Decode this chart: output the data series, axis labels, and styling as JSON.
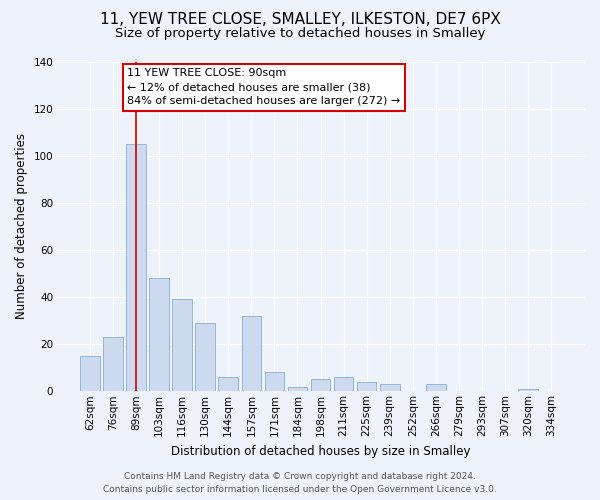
{
  "title": "11, YEW TREE CLOSE, SMALLEY, ILKESTON, DE7 6PX",
  "subtitle": "Size of property relative to detached houses in Smalley",
  "xlabel": "Distribution of detached houses by size in Smalley",
  "ylabel": "Number of detached properties",
  "bar_labels": [
    "62sqm",
    "76sqm",
    "89sqm",
    "103sqm",
    "116sqm",
    "130sqm",
    "144sqm",
    "157sqm",
    "171sqm",
    "184sqm",
    "198sqm",
    "211sqm",
    "225sqm",
    "239sqm",
    "252sqm",
    "266sqm",
    "279sqm",
    "293sqm",
    "307sqm",
    "320sqm",
    "334sqm"
  ],
  "bar_values": [
    15,
    23,
    105,
    48,
    39,
    29,
    6,
    32,
    8,
    2,
    5,
    6,
    4,
    3,
    0,
    3,
    0,
    0,
    0,
    1,
    0
  ],
  "bar_color": "#ccd9ee",
  "bar_edge_color": "#8aaed4",
  "vline_x_index": 2,
  "vline_color": "#cc0000",
  "ylim": [
    0,
    140
  ],
  "yticks": [
    0,
    20,
    40,
    60,
    80,
    100,
    120,
    140
  ],
  "annotation_title": "11 YEW TREE CLOSE: 90sqm",
  "annotation_line1": "← 12% of detached houses are smaller (38)",
  "annotation_line2": "84% of semi-detached houses are larger (272) →",
  "annotation_box_facecolor": "#ffffff",
  "annotation_box_edgecolor": "#cc0000",
  "footer_line1": "Contains HM Land Registry data © Crown copyright and database right 2024.",
  "footer_line2": "Contains public sector information licensed under the Open Government Licence v3.0.",
  "bg_color": "#eef2fb",
  "plot_bg_color": "#eef2fb",
  "title_fontsize": 11,
  "subtitle_fontsize": 9.5,
  "axis_label_fontsize": 8.5,
  "tick_fontsize": 7.5,
  "annotation_fontsize": 8,
  "footer_fontsize": 6.5
}
